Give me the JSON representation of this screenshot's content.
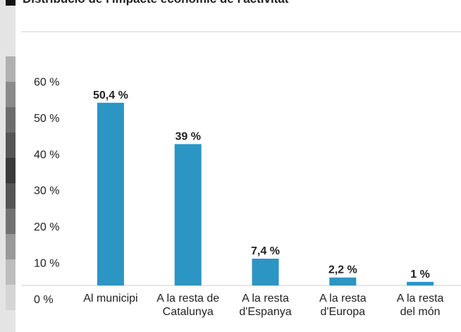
{
  "chart_data": {
    "type": "bar",
    "title": "Distribució de l'impacte econòmic de l'activitat",
    "categories": [
      "Al municipi",
      "A la resta de\nCatalunya",
      "A la resta\nd'Espanya",
      "A la resta\nd'Europa",
      "A la resta\ndel món"
    ],
    "values": [
      50.4,
      39,
      7.4,
      2.2,
      1
    ],
    "value_labels": [
      "50,4 %",
      "39 %",
      "7,4 %",
      "2,2 %",
      "1 %"
    ],
    "color": "#2b95c3",
    "ylim": [
      0,
      70
    ],
    "yticks": [
      {
        "value": 0,
        "label": "0 %"
      },
      {
        "value": 10,
        "label": "10 %"
      },
      {
        "value": 20,
        "label": "20 %"
      },
      {
        "value": 30,
        "label": "30 %"
      },
      {
        "value": 40,
        "label": "40 %"
      },
      {
        "value": 50,
        "label": "50 %"
      },
      {
        "value": 60,
        "label": "60 %"
      }
    ],
    "grid": false
  }
}
